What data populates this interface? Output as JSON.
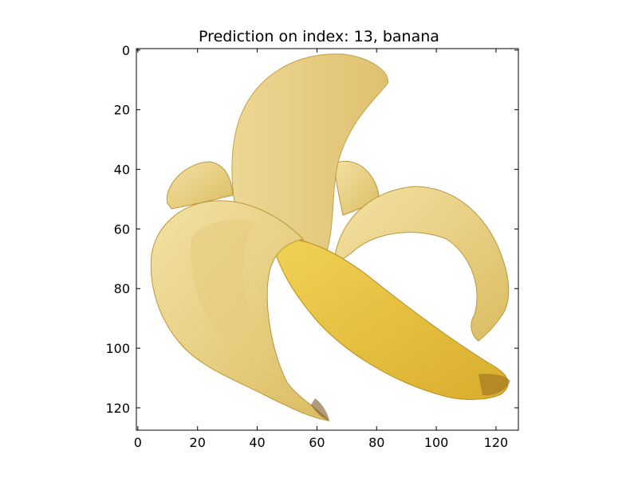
{
  "figure": {
    "title": "Prediction on index: 13, banana"
  },
  "axes": {
    "x_ticks": [
      "0",
      "20",
      "40",
      "60",
      "80",
      "100",
      "120"
    ],
    "y_ticks": [
      "0",
      "20",
      "40",
      "60",
      "80",
      "100",
      "120"
    ],
    "x_tick_values": [
      0,
      20,
      40,
      60,
      80,
      100,
      120
    ],
    "y_tick_values": [
      0,
      20,
      40,
      60,
      80,
      100,
      120
    ],
    "xlim": [
      -0.5,
      127.5
    ],
    "ylim": [
      127.5,
      -0.5
    ]
  },
  "image": {
    "subject": "peeled-banana",
    "colors": {
      "peel_light": "#f0dc96",
      "peel_mid": "#e3c46a",
      "peel_shadow": "#c9a24a",
      "flesh": "#e8c640",
      "flesh_dark": "#d2a92a",
      "edge": "#8a6a2a",
      "background": "#ffffff"
    }
  }
}
